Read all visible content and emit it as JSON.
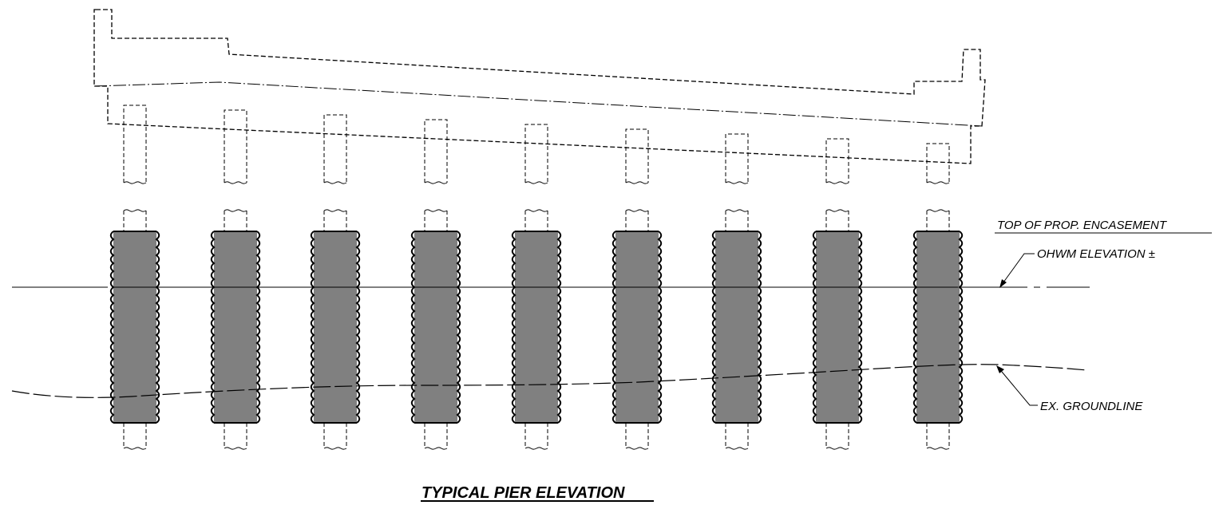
{
  "drawing": {
    "title": "TYPICAL PIER ELEVATION",
    "labels": {
      "top_of_encasement": "TOP OF PROP. ENCASEMENT",
      "ohwm": "OHWM ELEVATION ±",
      "groundline": "EX. GROUNDLINE"
    },
    "pile_count": 9,
    "colors": {
      "encasement_fill": "#808080",
      "line": "#000000",
      "background": "#ffffff"
    }
  }
}
